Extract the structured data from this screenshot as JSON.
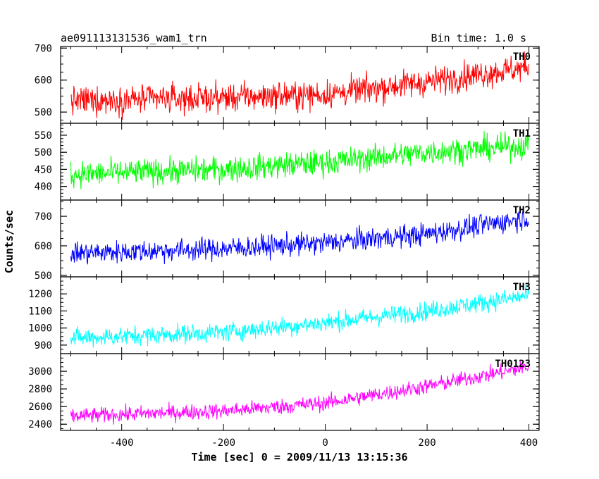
{
  "header": {
    "left_title": "ae091113131536_wam1_trn",
    "right_title": "Bin time: 1.0 s"
  },
  "chart_data": {
    "type": "line",
    "xlabel": "Time [sec] 0 = 2009/11/13 13:15:36",
    "ylabel": "Counts/sec",
    "xlim": [
      -520,
      420
    ],
    "x_ticks": [
      -400,
      -200,
      0,
      200,
      400
    ],
    "x_start": -500,
    "x_end": 400,
    "x_step": 1,
    "grid": false,
    "panels": [
      {
        "name": "TH0",
        "color": "#ff0000",
        "ylim": [
          465,
          705
        ],
        "y_ticks": [
          500,
          600,
          700
        ],
        "trend": [
          [
            -500,
            535
          ],
          [
            -200,
            545
          ],
          [
            0,
            555
          ],
          [
            200,
            595
          ],
          [
            400,
            640
          ]
        ],
        "noise": 40
      },
      {
        "name": "TH1",
        "color": "#00ff00",
        "ylim": [
          360,
          585
        ],
        "y_ticks": [
          400,
          450,
          500,
          550
        ],
        "trend": [
          [
            -500,
            435
          ],
          [
            -200,
            450
          ],
          [
            0,
            470
          ],
          [
            200,
            500
          ],
          [
            400,
            520
          ]
        ],
        "noise": 34
      },
      {
        "name": "TH2",
        "color": "#0000ff",
        "ylim": [
          495,
          755
        ],
        "y_ticks": [
          500,
          600,
          700
        ],
        "trend": [
          [
            -500,
            575
          ],
          [
            -200,
            590
          ],
          [
            0,
            610
          ],
          [
            200,
            640
          ],
          [
            400,
            695
          ]
        ],
        "noise": 34
      },
      {
        "name": "TH3",
        "color": "#00ffff",
        "ylim": [
          850,
          1300
        ],
        "y_ticks": [
          900,
          1000,
          1100,
          1200
        ],
        "trend": [
          [
            -500,
            940
          ],
          [
            -200,
            975
          ],
          [
            0,
            1030
          ],
          [
            200,
            1100
          ],
          [
            400,
            1190
          ]
        ],
        "noise": 50
      },
      {
        "name": "TH0123",
        "color": "#ff00ff",
        "ylim": [
          2330,
          3200
        ],
        "y_ticks": [
          2400,
          2600,
          2800,
          3000
        ],
        "trend": [
          [
            -500,
            2490
          ],
          [
            -200,
            2550
          ],
          [
            0,
            2640
          ],
          [
            200,
            2830
          ],
          [
            400,
            3050
          ]
        ],
        "noise": 80
      }
    ]
  }
}
